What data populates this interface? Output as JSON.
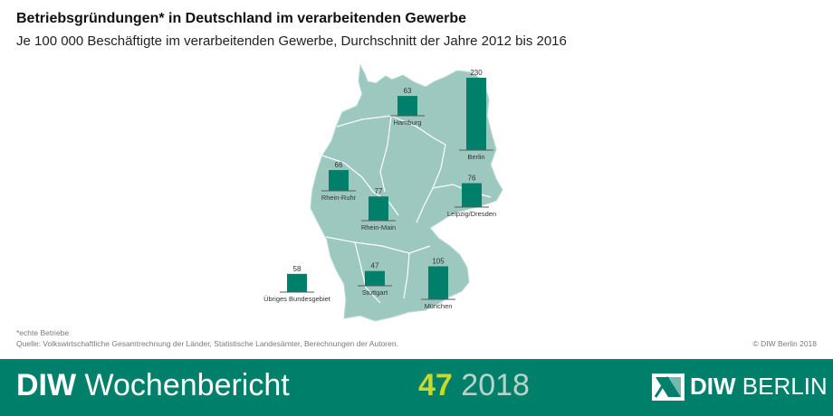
{
  "header": {
    "title": "Betriebsgründungen* in Deutschland im verarbeitenden Gewerbe",
    "subtitle": "Je 100 000 Beschäftigte im verarbeitenden Gewerbe, Durchschnitt der Jahre 2012 bis 2016"
  },
  "chart_data": {
    "type": "bar",
    "title": "Betriebsgründungen* in Deutschland im verarbeitenden Gewerbe",
    "subtitle": "Je 100 000 Beschäftigte im verarbeitenden Gewerbe, Durchschnitt der Jahre 2012 bis 2016",
    "categories": [
      "Hamburg",
      "Berlin",
      "Rhein-Ruhr",
      "Rhein-Main",
      "Leipzig/Dresden",
      "Stuttgart",
      "München",
      "Übriges Bundesgebiet"
    ],
    "values": [
      63,
      230,
      66,
      77,
      76,
      47,
      105,
      58
    ],
    "overlay": "map of Germany",
    "colors": {
      "bar": "#00806b",
      "map": "#9dc8c0",
      "map_border": "#ffffff"
    }
  },
  "footer": {
    "note": "*echte Betriebe",
    "source": "Quelle: Volkswirtschaftliche Gesamtrechnung der Länder, Statistische Landesämter, Berechnungen der Autoren.",
    "copyright": "© DIW Berlin 2018",
    "brand": "DIW",
    "publication": "Wochenbericht",
    "issue": "47",
    "year": "2018",
    "logo_text_bold": "DIW",
    "logo_text_light": "BERLIN"
  },
  "colors": {
    "footer_bg": "#00806b",
    "issue": "#c9d92c",
    "year": "#b7d4cb"
  }
}
